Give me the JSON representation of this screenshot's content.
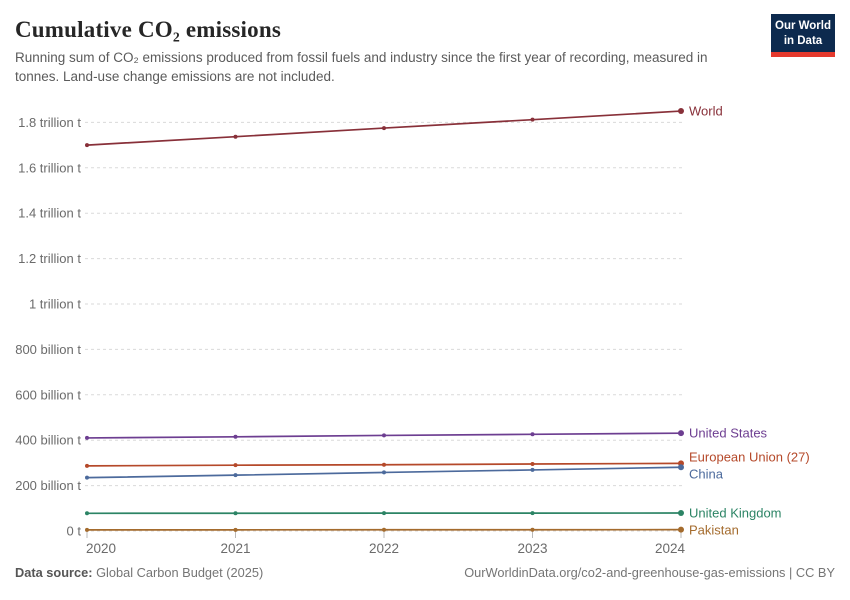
{
  "header": {
    "title": "Cumulative CO₂ emissions",
    "subtitle": "Running sum of CO₂ emissions produced from fossil fuels and industry since the first year of recording, measured in tonnes. Land-use change emissions are not included.",
    "logo": {
      "line1": "Our World",
      "line2": "in Data",
      "bg_color": "#0d2a4e",
      "accent_color": "#e5392d"
    }
  },
  "chart_data": {
    "type": "line",
    "title": "Cumulative CO₂ emissions",
    "unit": "t",
    "x": [
      2020,
      2021,
      2022,
      2023,
      2024
    ],
    "x_tick_labels": [
      "2020",
      "2021",
      "2022",
      "2023",
      "2024"
    ],
    "series": [
      {
        "name": "World",
        "color": "#883039",
        "values_billion_tonnes": [
          1700,
          1737,
          1775,
          1812,
          1850
        ]
      },
      {
        "name": "United States",
        "color": "#6d3e91",
        "values_billion_tonnes": [
          410,
          415,
          421,
          426,
          431
        ]
      },
      {
        "name": "European Union (27)",
        "color": "#b5492a",
        "values_billion_tonnes": [
          287,
          290,
          292,
          295,
          298
        ]
      },
      {
        "name": "China",
        "color": "#4c6a9c",
        "values_billion_tonnes": [
          235,
          246,
          258,
          269,
          281
        ]
      },
      {
        "name": "United Kingdom",
        "color": "#2c8465",
        "values_billion_tonnes": [
          78.0,
          78.3,
          78.6,
          78.9,
          79.2
        ]
      },
      {
        "name": "Pakistan",
        "color": "#a46b2d",
        "values_billion_tonnes": [
          4.9,
          5.1,
          5.4,
          5.6,
          5.9
        ]
      }
    ],
    "y_axis": {
      "ticks_billion_tonnes": [
        0,
        200,
        400,
        600,
        800,
        1000,
        1200,
        1400,
        1600,
        1800
      ],
      "tick_labels": [
        "0 t",
        "200 billion t",
        "400 billion t",
        "600 billion t",
        "800 billion t",
        "1 trillion t",
        "1.2 trillion t",
        "1.4 trillion t",
        "1.6 trillion t",
        "1.8 trillion t"
      ],
      "range_billion_tonnes": [
        0,
        1850
      ]
    },
    "grid": "dashed",
    "legend_position": "end-of-line-labels"
  },
  "footer": {
    "source_label": "Data source:",
    "source_value": "Global Carbon Budget (2025)",
    "attribution": "OurWorldinData.org/co2-and-greenhouse-gas-emissions | CC BY"
  }
}
